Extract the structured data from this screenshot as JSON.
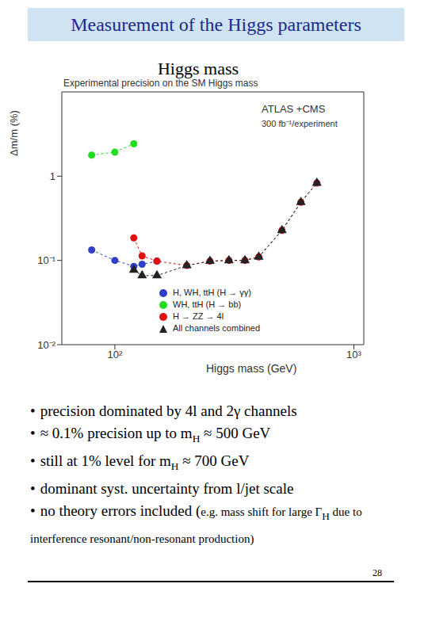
{
  "header": {
    "title": "Measurement of the Higgs parameters",
    "subtitle": "Higgs mass"
  },
  "chart_data": {
    "type": "scatter",
    "title": "Experimental precision on the SM Higgs mass",
    "annotations": [
      "ATLAS +CMS",
      "300 fb⁻¹/experiment"
    ],
    "x_label": "Higgs mass (GeV)",
    "y_label": "Δm/m (%)",
    "log": true,
    "grid": false,
    "legend": "lower right",
    "xlim": [
      60,
      1100
    ],
    "xticks": [
      {
        "value": 100,
        "label": "10²"
      },
      {
        "value": 1000,
        "label": "10³"
      }
    ],
    "ylim": [
      0.01,
      10
    ],
    "yticks": [
      {
        "value": 0.01,
        "label": "10⁻²"
      },
      {
        "value": 0.1,
        "label": "10⁻¹"
      },
      1
    ],
    "series": [
      {
        "name": "H, WH, ttH (H → γγ)",
        "color": "#2f3fc8",
        "marker": "circle",
        "line_style": "dashed",
        "x": [
          80,
          100,
          120,
          130,
          150
        ],
        "values": [
          0.133,
          0.1,
          0.085,
          0.09,
          0.098
        ]
      },
      {
        "name": "WH, ttH (H → bb)",
        "color": "#22dd22",
        "marker": "circle",
        "line_style": "dashed",
        "x": [
          80,
          100,
          120
        ],
        "values": [
          1.78,
          1.93,
          2.42
        ]
      },
      {
        "name": "H → ZZ → 4l",
        "color": "#e01010",
        "marker": "circle",
        "line_style": "dashed",
        "x": [
          120,
          130,
          150,
          200,
          250,
          300,
          350,
          400,
          500,
          600,
          700
        ],
        "values": [
          0.185,
          0.113,
          0.098,
          0.087,
          0.098,
          0.1,
          0.1,
          0.11,
          0.227,
          0.49,
          0.83
        ]
      },
      {
        "name": "All channels combined",
        "color": "#222222",
        "marker": "triangle",
        "line_style": "dashed",
        "x": [
          120,
          130,
          150,
          200,
          250,
          300,
          350,
          400,
          500,
          600,
          700
        ],
        "values": [
          0.077,
          0.066,
          0.066,
          0.087,
          0.098,
          0.1,
          0.1,
          0.11,
          0.227,
          0.49,
          0.83
        ]
      }
    ]
  },
  "bullet": "•",
  "bullets": [
    [
      {
        "text": "precision dominated by 4l and 2γ channels"
      }
    ],
    [
      {
        "text": "≈ 0.1% precision up to m"
      },
      {
        "sub": "H"
      },
      {
        "text": " ≈ 500 GeV"
      }
    ],
    [
      {
        "text": "still at 1% level for m"
      },
      {
        "sub": "H"
      },
      {
        "text": " ≈ 700 GeV"
      }
    ],
    [
      {
        "text": "dominant syst. uncertainty from l/jet scale"
      }
    ],
    [
      {
        "text": "no theory errors included ("
      },
      {
        "small": "e.g. mass shift for large Γ"
      },
      {
        "sub": "H"
      },
      {
        "small": "  due to interference  resonant/non-resonant production)"
      }
    ]
  ],
  "page_number": "28"
}
